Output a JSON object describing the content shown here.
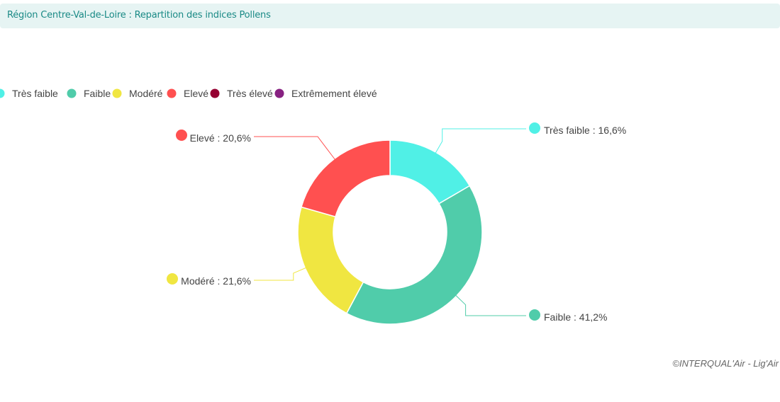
{
  "header": {
    "title": "Région Centre-Val-de-Loire : Repartition des indices Pollens"
  },
  "chart_data": {
    "type": "pie",
    "subtype": "donut",
    "categories": [
      "Très faible",
      "Faible",
      "Modéré",
      "Elevé",
      "Très élevé",
      "Extrêmement élevé"
    ],
    "values": [
      16.6,
      41.2,
      21.6,
      20.6,
      0,
      0
    ],
    "labels": [
      "Très faible : 16,6%",
      "Faible : 41,2%",
      "Modéré : 21,6%",
      "Elevé : 20,6%",
      "",
      ""
    ],
    "colors": [
      "#50f0e6",
      "#50ccaa",
      "#f0e641",
      "#ff5050",
      "#960032",
      "#872181"
    ],
    "legend_position": "top-left"
  },
  "credit": "©INTERQUAL'Air - Lig'Air"
}
